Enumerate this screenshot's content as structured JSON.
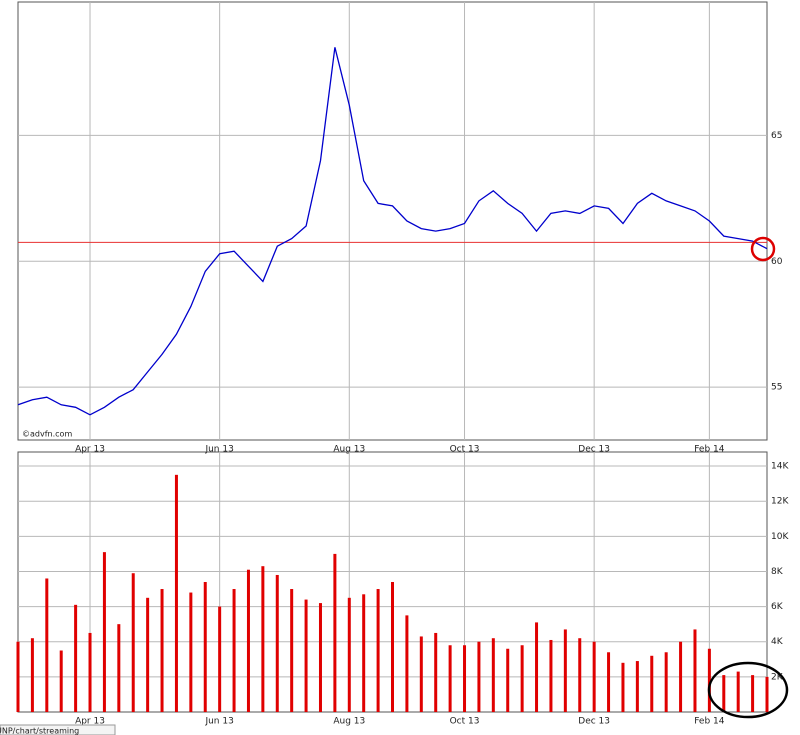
{
  "chart_data": [
    {
      "type": "line",
      "watermark": "©advfn.com",
      "categories": [
        null,
        null,
        null,
        null,
        null,
        "Apr 13",
        null,
        null,
        null,
        null,
        null,
        null,
        null,
        null,
        "Jun 13",
        null,
        null,
        null,
        null,
        null,
        null,
        null,
        null,
        "Aug 13",
        null,
        null,
        null,
        null,
        null,
        null,
        null,
        "Oct 13",
        null,
        null,
        null,
        null,
        null,
        null,
        null,
        null,
        "Dec 13",
        null,
        null,
        null,
        null,
        null,
        null,
        null,
        "Feb 14",
        null,
        null,
        null,
        null
      ],
      "values": [
        54.3,
        54.5,
        54.6,
        54.3,
        54.2,
        53.9,
        54.2,
        54.6,
        54.9,
        55.6,
        56.3,
        57.1,
        58.2,
        59.6,
        60.3,
        60.4,
        59.8,
        59.2,
        60.6,
        60.9,
        61.4,
        64.0,
        68.5,
        66.2,
        63.2,
        62.3,
        62.2,
        61.6,
        61.3,
        61.2,
        61.3,
        61.5,
        62.4,
        62.8,
        62.3,
        61.9,
        61.2,
        61.9,
        62.0,
        61.9,
        62.2,
        62.1,
        61.5,
        62.3,
        62.7,
        62.4,
        62.2,
        62.0,
        61.6,
        61.0,
        60.9,
        60.8,
        60.5
      ],
      "color": "#0000cc",
      "reference_line": 60.75,
      "reference_color": "#e83030",
      "ylim": [
        52.9,
        70.3
      ],
      "yticks": [
        55,
        60,
        65
      ],
      "grid": true
    },
    {
      "type": "bar",
      "status_text": "UNP/chart/streaming",
      "categories": [
        null,
        null,
        null,
        null,
        null,
        "Apr 13",
        null,
        null,
        null,
        null,
        null,
        null,
        null,
        null,
        "Jun 13",
        null,
        null,
        null,
        null,
        null,
        null,
        null,
        null,
        "Aug 13",
        null,
        null,
        null,
        null,
        null,
        null,
        null,
        "Oct 13",
        null,
        null,
        null,
        null,
        null,
        null,
        null,
        null,
        "Dec 13",
        null,
        null,
        null,
        null,
        null,
        null,
        null,
        "Feb 14",
        null,
        null,
        null,
        null
      ],
      "values": [
        4000,
        4200,
        7600,
        3500,
        6100,
        4500,
        9100,
        5000,
        7900,
        6500,
        7000,
        13500,
        6800,
        7400,
        6000,
        7000,
        8100,
        8300,
        7800,
        7000,
        6400,
        6200,
        9000,
        6500,
        6700,
        7000,
        7400,
        5500,
        4300,
        4500,
        3800,
        3800,
        4000,
        4200,
        3600,
        3800,
        5100,
        4100,
        4700,
        4200,
        4000,
        3400,
        2800,
        2900,
        3200,
        3400,
        4000,
        4700,
        3600,
        2100,
        2300,
        2100,
        2000
      ],
      "color": "#e00000",
      "ylim": [
        0,
        14800
      ],
      "yticks": [
        {
          "value": 2000,
          "label": "2K"
        },
        {
          "value": 4000,
          "label": "4K"
        },
        {
          "value": 6000,
          "label": "6K"
        },
        {
          "value": 8000,
          "label": "8K"
        },
        {
          "value": 10000,
          "label": "10K"
        },
        {
          "value": 12000,
          "label": "12K"
        },
        {
          "value": 14000,
          "label": "14K"
        }
      ],
      "grid": true
    }
  ]
}
